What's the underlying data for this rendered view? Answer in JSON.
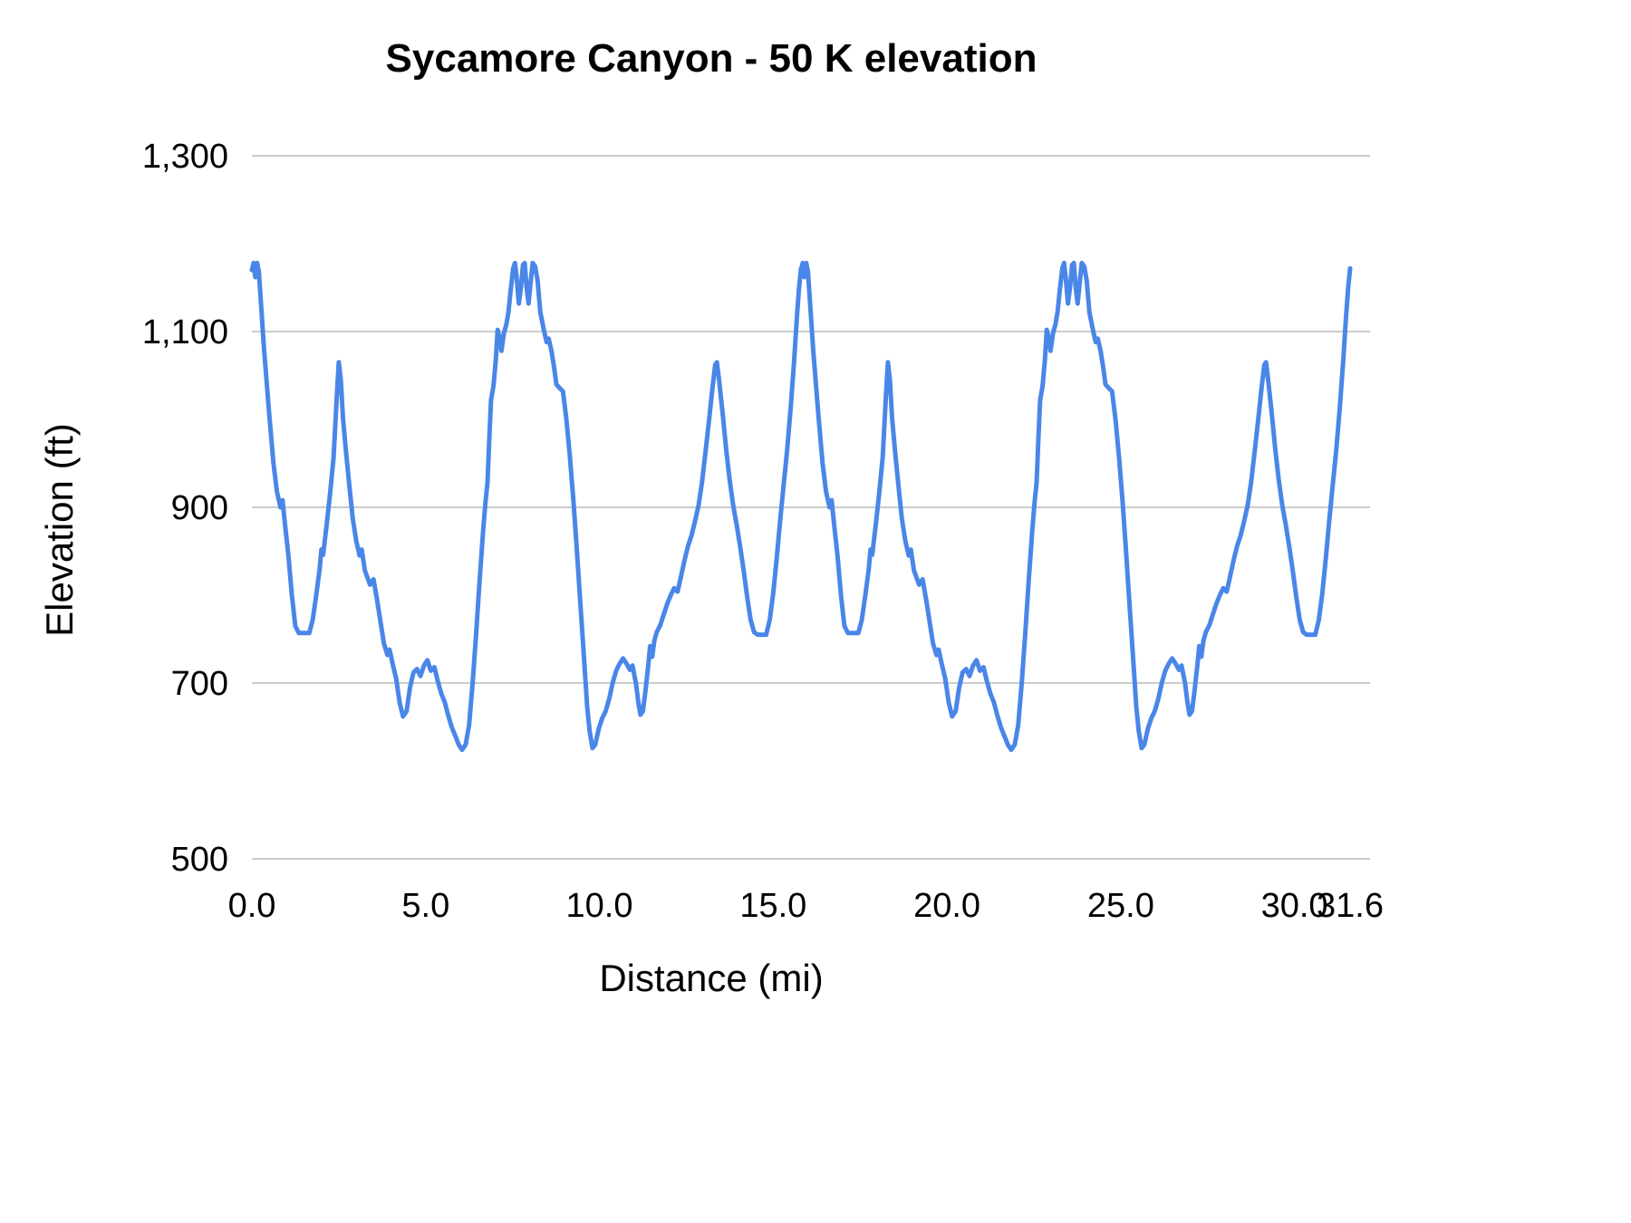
{
  "chart_data": {
    "type": "line",
    "title": "Sycamore Canyon - 50 K elevation",
    "xlabel": "Distance (mi)",
    "ylabel": "Elevation (ft)",
    "xlim": [
      0,
      31.6
    ],
    "ylim": [
      500,
      1300
    ],
    "grid": "horizontal-only",
    "legend": "none",
    "line_color": "#4a86e8",
    "grid_color": "#cccccc",
    "text_color": "#000000",
    "yticks": [
      [
        500,
        "500"
      ],
      [
        700,
        "700"
      ],
      [
        900,
        "900"
      ],
      [
        1100,
        "1,100"
      ],
      [
        1300,
        "1,300"
      ]
    ],
    "xticks": [
      [
        0,
        "0.0"
      ],
      [
        5,
        "5.0"
      ],
      [
        10,
        "10.0"
      ],
      [
        15,
        "15.0"
      ],
      [
        20,
        "20.0"
      ],
      [
        25,
        "25.0"
      ],
      [
        30,
        "30.0"
      ],
      [
        31.6,
        "31.6"
      ]
    ],
    "series": [
      {
        "name": "Elevation",
        "note": "Two identical laps; full series = lap_profile repeated at each lap_start_x offset (x in miles, y in feet).",
        "lap_start_x": [
          0,
          15.8
        ],
        "lap_profile": [
          [
            0,
            1170
          ],
          [
            0.05,
            1178
          ],
          [
            0.1,
            1162
          ],
          [
            0.15,
            1178
          ],
          [
            0.2,
            1168
          ],
          [
            0.35,
            1080
          ],
          [
            0.5,
            1005
          ],
          [
            0.62,
            950
          ],
          [
            0.72,
            918
          ],
          [
            0.82,
            900
          ],
          [
            0.88,
            908
          ],
          [
            0.95,
            882
          ],
          [
            1.05,
            845
          ],
          [
            1.15,
            800
          ],
          [
            1.25,
            765
          ],
          [
            1.35,
            757
          ],
          [
            1.65,
            757
          ],
          [
            1.75,
            772
          ],
          [
            1.85,
            800
          ],
          [
            1.95,
            830
          ],
          [
            2,
            852
          ],
          [
            2.05,
            846
          ],
          [
            2.15,
            880
          ],
          [
            2.25,
            916
          ],
          [
            2.35,
            956
          ],
          [
            2.45,
            1032
          ],
          [
            2.5,
            1065
          ],
          [
            2.56,
            1044
          ],
          [
            2.62,
            1002
          ],
          [
            2.7,
            966
          ],
          [
            2.8,
            926
          ],
          [
            2.9,
            888
          ],
          [
            3,
            862
          ],
          [
            3.1,
            845
          ],
          [
            3.16,
            852
          ],
          [
            3.25,
            828
          ],
          [
            3.4,
            812
          ],
          [
            3.5,
            818
          ],
          [
            3.6,
            795
          ],
          [
            3.7,
            770
          ],
          [
            3.8,
            745
          ],
          [
            3.9,
            732
          ],
          [
            3.96,
            738
          ],
          [
            4.05,
            722
          ],
          [
            4.15,
            705
          ],
          [
            4.25,
            678
          ],
          [
            4.35,
            662
          ],
          [
            4.45,
            668
          ],
          [
            4.55,
            695
          ],
          [
            4.65,
            712
          ],
          [
            4.75,
            716
          ],
          [
            4.85,
            708
          ],
          [
            4.95,
            720
          ],
          [
            5.05,
            726
          ],
          [
            5.15,
            714
          ],
          [
            5.25,
            718
          ],
          [
            5.35,
            702
          ],
          [
            5.45,
            688
          ],
          [
            5.55,
            678
          ],
          [
            5.65,
            663
          ],
          [
            5.75,
            650
          ],
          [
            5.85,
            640
          ],
          [
            5.95,
            630
          ],
          [
            6.05,
            624
          ],
          [
            6.15,
            630
          ],
          [
            6.25,
            652
          ],
          [
            6.35,
            700
          ],
          [
            6.45,
            755
          ],
          [
            6.55,
            815
          ],
          [
            6.65,
            872
          ],
          [
            6.72,
            905
          ],
          [
            6.78,
            928
          ],
          [
            6.83,
            978
          ],
          [
            6.88,
            1022
          ],
          [
            6.95,
            1038
          ],
          [
            7.02,
            1068
          ],
          [
            7.07,
            1102
          ],
          [
            7.12,
            1094
          ],
          [
            7.18,
            1078
          ],
          [
            7.25,
            1098
          ],
          [
            7.32,
            1108
          ],
          [
            7.38,
            1122
          ],
          [
            7.45,
            1148
          ],
          [
            7.52,
            1172
          ],
          [
            7.57,
            1178
          ],
          [
            7.62,
            1160
          ],
          [
            7.68,
            1132
          ],
          [
            7.74,
            1150
          ],
          [
            7.8,
            1176
          ],
          [
            7.85,
            1178
          ],
          [
            7.9,
            1152
          ],
          [
            7.96,
            1132
          ],
          [
            8.02,
            1156
          ],
          [
            8.08,
            1178
          ],
          [
            8.15,
            1174
          ],
          [
            8.22,
            1158
          ],
          [
            8.3,
            1122
          ],
          [
            8.4,
            1102
          ],
          [
            8.48,
            1088
          ],
          [
            8.54,
            1092
          ],
          [
            8.62,
            1078
          ],
          [
            8.7,
            1058
          ],
          [
            8.76,
            1040
          ],
          [
            8.85,
            1036
          ],
          [
            8.95,
            1032
          ],
          [
            9.05,
            1000
          ],
          [
            9.15,
            958
          ],
          [
            9.25,
            908
          ],
          [
            9.35,
            852
          ],
          [
            9.45,
            792
          ],
          [
            9.55,
            732
          ],
          [
            9.65,
            672
          ],
          [
            9.72,
            645
          ],
          [
            9.8,
            626
          ],
          [
            9.88,
            630
          ],
          [
            9.98,
            648
          ],
          [
            10.08,
            660
          ],
          [
            10.18,
            668
          ],
          [
            10.28,
            682
          ],
          [
            10.38,
            700
          ],
          [
            10.48,
            714
          ],
          [
            10.58,
            722
          ],
          [
            10.68,
            728
          ],
          [
            10.78,
            722
          ],
          [
            10.88,
            715
          ],
          [
            10.95,
            720
          ],
          [
            11.05,
            700
          ],
          [
            11.12,
            678
          ],
          [
            11.18,
            664
          ],
          [
            11.25,
            668
          ],
          [
            11.32,
            690
          ],
          [
            11.4,
            718
          ],
          [
            11.46,
            742
          ],
          [
            11.52,
            730
          ],
          [
            11.58,
            748
          ],
          [
            11.65,
            758
          ],
          [
            11.75,
            766
          ],
          [
            11.85,
            778
          ],
          [
            11.95,
            790
          ],
          [
            12.05,
            800
          ],
          [
            12.15,
            808
          ],
          [
            12.25,
            804
          ],
          [
            12.35,
            822
          ],
          [
            12.45,
            840
          ],
          [
            12.55,
            856
          ],
          [
            12.65,
            868
          ],
          [
            12.75,
            884
          ],
          [
            12.85,
            902
          ],
          [
            12.95,
            928
          ],
          [
            13.05,
            962
          ],
          [
            13.15,
            998
          ],
          [
            13.25,
            1035
          ],
          [
            13.33,
            1062
          ],
          [
            13.38,
            1065
          ],
          [
            13.45,
            1042
          ],
          [
            13.55,
            1005
          ],
          [
            13.65,
            965
          ],
          [
            13.75,
            930
          ],
          [
            13.85,
            902
          ],
          [
            13.95,
            880
          ],
          [
            14.05,
            855
          ],
          [
            14.15,
            828
          ],
          [
            14.25,
            798
          ],
          [
            14.35,
            772
          ],
          [
            14.45,
            758
          ],
          [
            14.55,
            755
          ],
          [
            14.8,
            755
          ],
          [
            14.9,
            772
          ],
          [
            15,
            802
          ],
          [
            15.1,
            842
          ],
          [
            15.2,
            885
          ],
          [
            15.3,
            925
          ],
          [
            15.4,
            965
          ],
          [
            15.5,
            1012
          ],
          [
            15.6,
            1065
          ],
          [
            15.68,
            1115
          ],
          [
            15.74,
            1148
          ],
          [
            15.8,
            1172
          ]
        ]
      }
    ]
  }
}
